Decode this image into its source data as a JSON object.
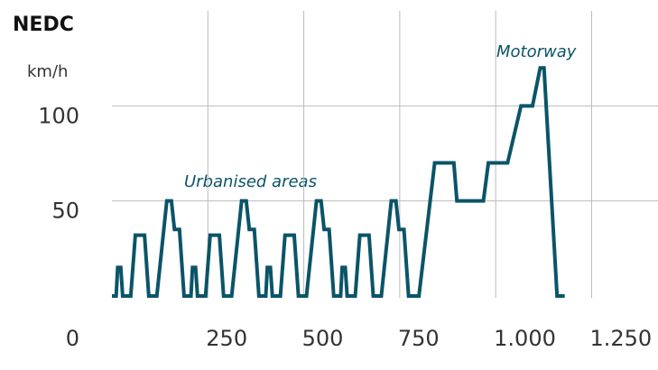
{
  "chart_data": {
    "type": "line",
    "title": "NEDC",
    "y_label": "km/h",
    "annotations": [
      "Urbanised areas",
      "Motorway"
    ],
    "x": [
      0,
      11,
      15,
      23,
      28,
      49,
      61,
      85,
      96,
      117,
      143,
      155,
      163,
      176,
      188,
      195,
      206,
      210,
      218,
      223,
      244,
      256,
      280,
      291,
      312,
      338,
      350,
      358,
      371,
      383,
      390,
      401,
      405,
      413,
      418,
      439,
      451,
      475,
      486,
      507,
      533,
      545,
      553,
      566,
      578,
      585,
      596,
      600,
      608,
      613,
      634,
      646,
      670,
      681,
      702,
      728,
      740,
      748,
      761,
      773,
      780,
      800,
      841,
      891,
      899,
      968,
      981,
      1031,
      1066,
      1096,
      1116,
      1126,
      1160,
      1180
    ],
    "series": [
      {
        "name": "NEDC",
        "color": "#0b5468",
        "values": [
          0,
          0,
          15,
          15,
          0,
          0,
          32,
          32,
          0,
          0,
          50,
          50,
          35,
          35,
          0,
          0,
          0,
          15,
          15,
          0,
          0,
          32,
          32,
          0,
          0,
          50,
          50,
          35,
          35,
          0,
          0,
          0,
          15,
          15,
          0,
          0,
          32,
          32,
          0,
          0,
          50,
          50,
          35,
          35,
          0,
          0,
          0,
          15,
          15,
          0,
          0,
          32,
          32,
          0,
          0,
          50,
          50,
          35,
          35,
          0,
          0,
          0,
          70,
          70,
          50,
          50,
          70,
          70,
          100,
          100,
          120,
          120,
          0,
          0
        ]
      }
    ],
    "xlim": [
      0,
      1423
    ],
    "ylim": [
      0,
      150
    ],
    "xticks": [
      0,
      250,
      500,
      750,
      {
        "value": 1000,
        "label": "1.000"
      },
      {
        "value": 1250,
        "label": "1.250"
      }
    ],
    "yticks": [
      0,
      50,
      100
    ],
    "grid": true
  }
}
